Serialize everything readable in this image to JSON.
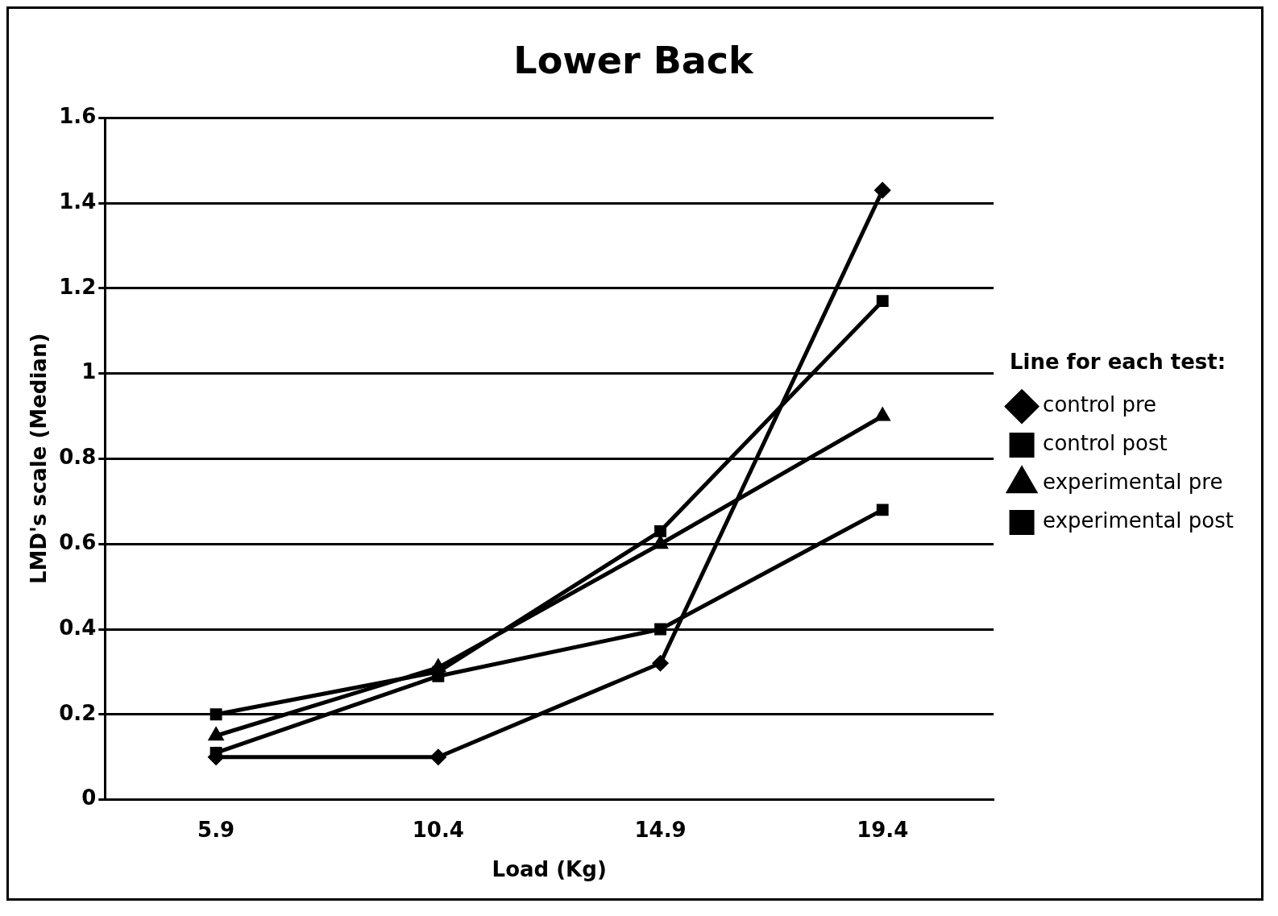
{
  "chart_data": {
    "type": "line",
    "title": "Lower Back",
    "xlabel": "Load (Kg)",
    "ylabel": "LMD's scale (Median)",
    "legend_title": "Line for each test:",
    "categories": [
      "5.9",
      "10.4",
      "14.9",
      "19.4"
    ],
    "series": [
      {
        "name": "control pre",
        "color": "#000000",
        "marker": "diamond",
        "values": [
          0.1,
          0.1,
          0.32,
          1.43
        ]
      },
      {
        "name": "control post",
        "color": "#000000",
        "marker": "square",
        "values": [
          0.11,
          0.29,
          0.4,
          0.68
        ]
      },
      {
        "name": "experimental pre",
        "color": "#000000",
        "marker": "triangle",
        "values": [
          0.15,
          0.31,
          0.6,
          0.9
        ]
      },
      {
        "name": "experimental post",
        "color": "#000000",
        "marker": "square",
        "values": [
          0.2,
          0.3,
          0.63,
          1.17
        ]
      }
    ],
    "ylim": [
      0,
      1.6
    ],
    "yticks": [
      0,
      0.2,
      0.4,
      0.6,
      0.8,
      1,
      1.2,
      1.4,
      1.6
    ],
    "grid": "y",
    "legend": "right",
    "line_style": "solid"
  }
}
